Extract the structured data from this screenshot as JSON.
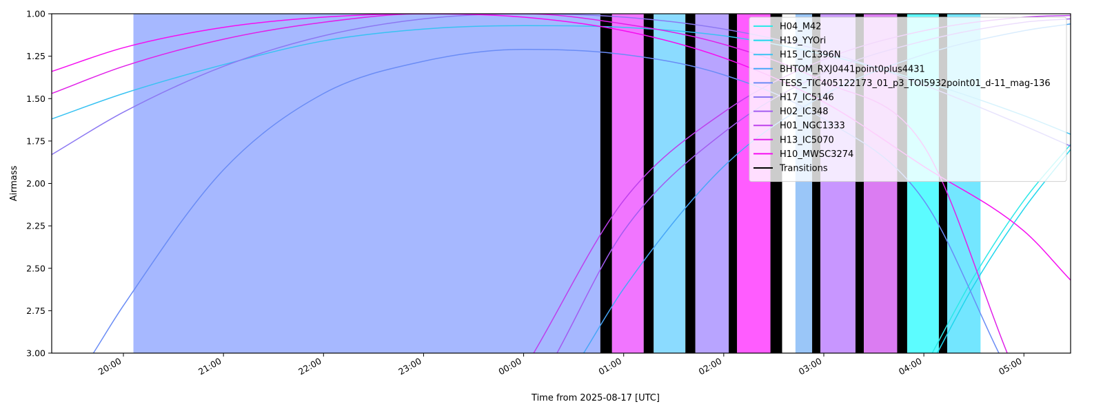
{
  "chart_data": {
    "type": "line",
    "title": "",
    "xlabel": "Time from 2025-08-17 [UTC]",
    "ylabel": "Airmass",
    "x_unit": "UTC time",
    "xlim": [
      "2025-08-16 19:17",
      "2025-08-17 05:28"
    ],
    "ylim": [
      1.0,
      3.0
    ],
    "y_inverted": true,
    "x_ticks": [
      "20:00",
      "21:00",
      "22:00",
      "23:00",
      "00:00",
      "01:00",
      "02:00",
      "03:00",
      "04:00",
      "05:00"
    ],
    "y_ticks": [
      "1.00",
      "1.25",
      "1.50",
      "1.75",
      "2.00",
      "2.25",
      "2.50",
      "2.75",
      "3.00"
    ],
    "grid": false,
    "legend_position": "top-right",
    "series": [
      {
        "name": "H04_M42",
        "color": "#2ce8e8",
        "points": [
          [
            "2025-08-17 04:05",
            3.0
          ],
          [
            "2025-08-17 04:30",
            2.55
          ],
          [
            "2025-08-17 05:00",
            2.1
          ],
          [
            "2025-08-17 05:28",
            1.77
          ]
        ]
      },
      {
        "name": "H19_YYOri",
        "color": "#1fd6ec",
        "points": [
          [
            "2025-08-17 04:08",
            3.0
          ],
          [
            "2025-08-17 04:30",
            2.6
          ],
          [
            "2025-08-17 05:00",
            2.15
          ],
          [
            "2025-08-17 05:28",
            1.8
          ]
        ]
      },
      {
        "name": "H15_IC1396N",
        "color": "#38c2f2",
        "points": [
          [
            "2025-08-16 19:17",
            1.62
          ],
          [
            "2025-08-16 20:00",
            1.47
          ],
          [
            "2025-08-16 21:00",
            1.3
          ],
          [
            "2025-08-16 22:00",
            1.16
          ],
          [
            "2025-08-16 23:00",
            1.09
          ],
          [
            "2025-08-17 00:00",
            1.07
          ],
          [
            "2025-08-17 01:00",
            1.08
          ],
          [
            "2025-08-17 02:00",
            1.13
          ],
          [
            "2025-08-17 03:00",
            1.24
          ],
          [
            "2025-08-17 04:00",
            1.4
          ],
          [
            "2025-08-17 05:00",
            1.6
          ],
          [
            "2025-08-17 05:28",
            1.71
          ]
        ]
      },
      {
        "name": "BHTOM_RXJ0441point0plus4431",
        "color": "#47a6f7",
        "points": [
          [
            "2025-08-17 00:36",
            3.0
          ],
          [
            "2025-08-17 01:00",
            2.62
          ],
          [
            "2025-08-17 02:00",
            1.9
          ],
          [
            "2025-08-17 03:00",
            1.48
          ],
          [
            "2025-08-17 04:00",
            1.24
          ],
          [
            "2025-08-17 05:00",
            1.1
          ],
          [
            "2025-08-17 05:28",
            1.06
          ]
        ]
      },
      {
        "name": "TESS_TIC405122173_01_p3_TOI5932point01_d-11_mag-136",
        "color": "#6a8cf5",
        "points": [
          [
            "2025-08-16 19:42",
            3.0
          ],
          [
            "2025-08-16 20:00",
            2.72
          ],
          [
            "2025-08-16 21:00",
            1.92
          ],
          [
            "2025-08-16 22:00",
            1.47
          ],
          [
            "2025-08-16 23:00",
            1.28
          ],
          [
            "2025-08-17 00:00",
            1.21
          ],
          [
            "2025-08-17 01:00",
            1.24
          ],
          [
            "2025-08-17 02:00",
            1.36
          ],
          [
            "2025-08-17 03:00",
            1.62
          ],
          [
            "2025-08-17 04:00",
            2.1
          ],
          [
            "2025-08-17 04:45",
            3.0
          ]
        ]
      },
      {
        "name": "H17_IC5146",
        "color": "#8c78f2",
        "points": [
          [
            "2025-08-16 19:17",
            1.83
          ],
          [
            "2025-08-16 20:00",
            1.58
          ],
          [
            "2025-08-16 21:00",
            1.31
          ],
          [
            "2025-08-16 22:00",
            1.13
          ],
          [
            "2025-08-16 23:00",
            1.03
          ],
          [
            "2025-08-17 00:00",
            1.0
          ],
          [
            "2025-08-17 01:00",
            1.02
          ],
          [
            "2025-08-17 02:00",
            1.09
          ],
          [
            "2025-08-17 03:00",
            1.22
          ],
          [
            "2025-08-17 04:00",
            1.42
          ],
          [
            "2025-08-17 05:00",
            1.66
          ],
          [
            "2025-08-17 05:28",
            1.78
          ]
        ]
      },
      {
        "name": "H02_IC348",
        "color": "#a25cf0",
        "points": [
          [
            "2025-08-17 00:20",
            3.0
          ],
          [
            "2025-08-17 01:00",
            2.28
          ],
          [
            "2025-08-17 02:00",
            1.7
          ],
          [
            "2025-08-17 03:00",
            1.35
          ],
          [
            "2025-08-17 04:00",
            1.16
          ],
          [
            "2025-08-17 05:00",
            1.05
          ],
          [
            "2025-08-17 05:28",
            1.03
          ]
        ]
      },
      {
        "name": "H01_NGC1333",
        "color": "#bd40ec",
        "points": [
          [
            "2025-08-17 00:06",
            3.0
          ],
          [
            "2025-08-17 01:00",
            2.1
          ],
          [
            "2025-08-17 02:00",
            1.58
          ],
          [
            "2025-08-17 03:00",
            1.27
          ],
          [
            "2025-08-17 04:00",
            1.1
          ],
          [
            "2025-08-17 05:00",
            1.02
          ],
          [
            "2025-08-17 05:28",
            1.01
          ]
        ]
      },
      {
        "name": "H13_IC5070",
        "color": "#e020e8",
        "points": [
          [
            "2025-08-16 19:17",
            1.47
          ],
          [
            "2025-08-16 20:00",
            1.31
          ],
          [
            "2025-08-16 21:00",
            1.15
          ],
          [
            "2025-08-16 22:00",
            1.05
          ],
          [
            "2025-08-16 23:00",
            1.0
          ],
          [
            "2025-08-17 00:00",
            1.0
          ],
          [
            "2025-08-17 01:00",
            1.06
          ],
          [
            "2025-08-17 02:00",
            1.18
          ],
          [
            "2025-08-17 03:00",
            1.4
          ],
          [
            "2025-08-17 04:00",
            1.78
          ],
          [
            "2025-08-17 04:50",
            3.0
          ]
        ]
      },
      {
        "name": "H10_MWSC3274",
        "color": "#f50cf0",
        "points": [
          [
            "2025-08-16 19:17",
            1.34
          ],
          [
            "2025-08-16 20:00",
            1.2
          ],
          [
            "2025-08-16 21:00",
            1.08
          ],
          [
            "2025-08-16 22:00",
            1.02
          ],
          [
            "2025-08-16 23:00",
            1.0
          ],
          [
            "2025-08-17 00:00",
            1.02
          ],
          [
            "2025-08-17 01:00",
            1.1
          ],
          [
            "2025-08-17 02:00",
            1.26
          ],
          [
            "2025-08-17 03:00",
            1.52
          ],
          [
            "2025-08-17 04:00",
            1.9
          ],
          [
            "2025-08-17 05:00",
            2.28
          ],
          [
            "2025-08-17 05:28",
            2.57
          ]
        ]
      }
    ],
    "legend_extra": [
      {
        "name": "Transitions",
        "color": "#000000"
      }
    ],
    "bands": [
      {
        "start": "2025-08-16 20:06",
        "end": "2025-08-17 00:46",
        "color": "#a6b8ff"
      },
      {
        "start": "2025-08-17 00:46",
        "end": "2025-08-17 00:53",
        "color": "#000000"
      },
      {
        "start": "2025-08-17 00:53",
        "end": "2025-08-17 01:12",
        "color": "#f175ff"
      },
      {
        "start": "2025-08-17 01:12",
        "end": "2025-08-17 01:18",
        "color": "#000000"
      },
      {
        "start": "2025-08-17 01:18",
        "end": "2025-08-17 01:37",
        "color": "#8bdbff"
      },
      {
        "start": "2025-08-17 01:37",
        "end": "2025-08-17 01:43",
        "color": "#000000"
      },
      {
        "start": "2025-08-17 01:43",
        "end": "2025-08-17 02:03",
        "color": "#b8a4ff"
      },
      {
        "start": "2025-08-17 02:03",
        "end": "2025-08-17 02:08",
        "color": "#000000"
      },
      {
        "start": "2025-08-17 02:08",
        "end": "2025-08-17 02:28",
        "color": "#ff5cff"
      },
      {
        "start": "2025-08-17 02:28",
        "end": "2025-08-17 02:35",
        "color": "#000000"
      },
      {
        "start": "2025-08-17 02:43",
        "end": "2025-08-17 02:53",
        "color": "#9ac6f8"
      },
      {
        "start": "2025-08-17 02:53",
        "end": "2025-08-17 02:58",
        "color": "#000000"
      },
      {
        "start": "2025-08-17 02:58",
        "end": "2025-08-17 03:19",
        "color": "#c896ff"
      },
      {
        "start": "2025-08-17 03:19",
        "end": "2025-08-17 03:24",
        "color": "#000000"
      },
      {
        "start": "2025-08-17 03:24",
        "end": "2025-08-17 03:44",
        "color": "#db7cf2"
      },
      {
        "start": "2025-08-17 03:44",
        "end": "2025-08-17 03:50",
        "color": "#000000"
      },
      {
        "start": "2025-08-17 03:50",
        "end": "2025-08-17 04:09",
        "color": "#5cfcff"
      },
      {
        "start": "2025-08-17 04:09",
        "end": "2025-08-17 04:14",
        "color": "#000000"
      },
      {
        "start": "2025-08-17 04:14",
        "end": "2025-08-17 04:34",
        "color": "#73e6ff"
      }
    ]
  }
}
